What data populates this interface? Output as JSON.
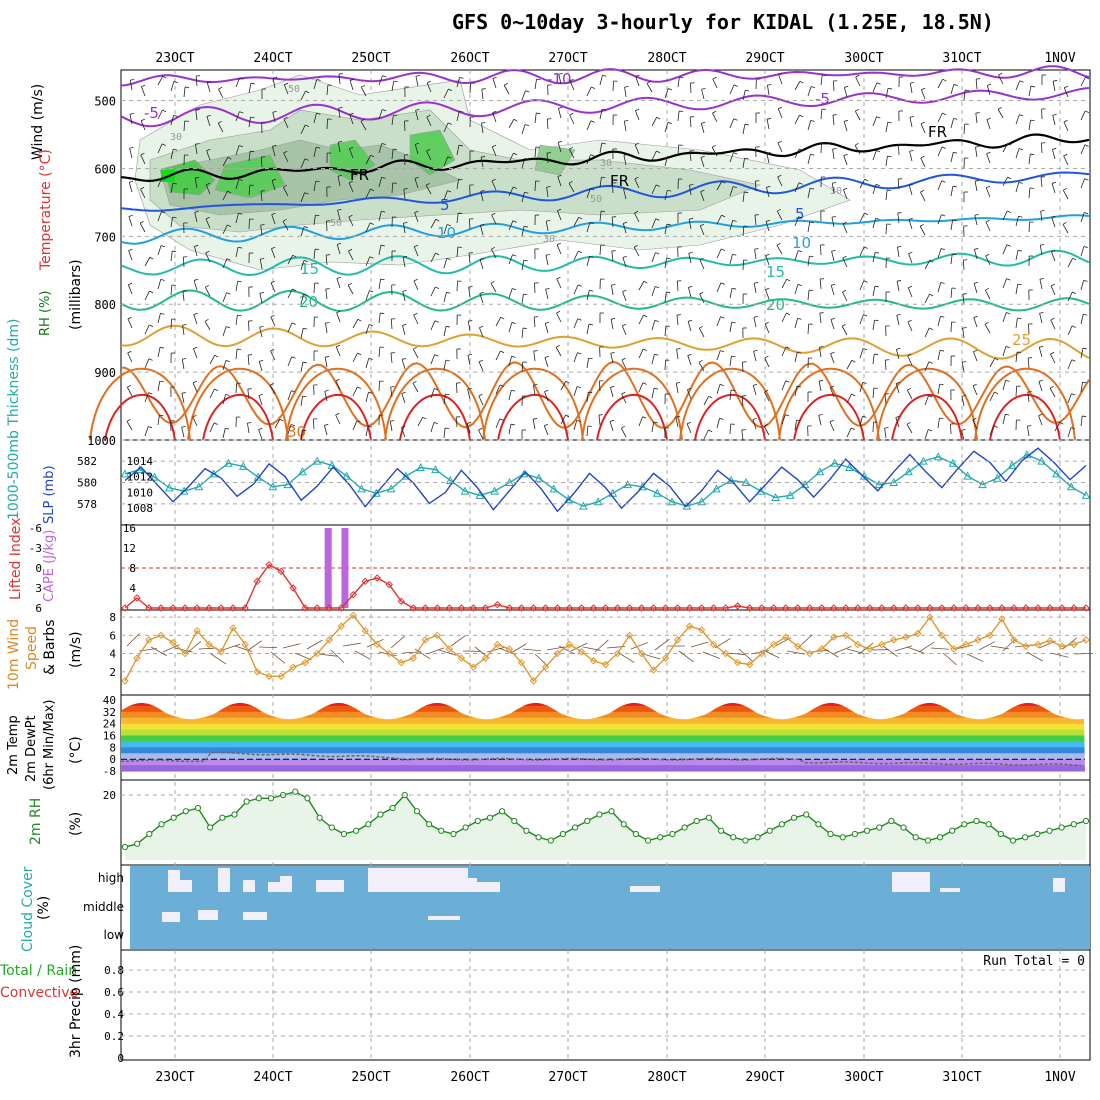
{
  "title": "GFS 0~10day 3-hourly for KIDAL (1.25E, 18.5N)",
  "colors": {
    "grid": "#aaaaaa",
    "wind_label": "#000000",
    "temp_label": "#dd3333",
    "rh_green": "#22aa22",
    "thickness": "#22aaaa",
    "slp": "#2244cc",
    "lifted": "#dd3333",
    "cape": "#bb66dd",
    "wind10": "#dd8822",
    "cloud": "#6baed6",
    "rh2m": "#228822"
  },
  "date_ticks": [
    "23OCT",
    "24OCT",
    "25OCT",
    "26OCT",
    "27OCT",
    "28OCT",
    "29OCT",
    "30OCT",
    "31OCT",
    "1NOV"
  ],
  "panel_labels": {
    "upper": {
      "wind": "Wind (m/s)",
      "temp": "Temperature (°C)",
      "rh": "RH (%)",
      "millibars": "(millibars)"
    },
    "thick": {
      "thickness": "1000-500mb Thickness (dm)",
      "slp": "SLP (mb)"
    },
    "cape": {
      "lifted": "Lifted Index",
      "cape": "CAPE (J/kg)"
    },
    "wind10": {
      "a": "10m Wind",
      "b": "Speed",
      "c": "& Barbs",
      "unit": "(m/s)"
    },
    "temp2m": {
      "a": "2m Temp",
      "b": "2m DewPt",
      "c": "(6hr Min/Max)",
      "unit": "(°C)"
    },
    "rh2m": {
      "a": "2m RH",
      "unit": "(%)"
    },
    "cloud": {
      "a": "Cloud Cover",
      "unit": "(%)",
      "high": "high",
      "middle": "middle",
      "low": "low"
    },
    "precip": {
      "a": "Total / Rain",
      "b": "Convective",
      "c": "3hr Precip (mm)",
      "run_total": "Run Total = 0"
    }
  },
  "chart_data": [
    {
      "type": "contour",
      "name": "upper-air",
      "ylabel": "millibars",
      "y_ticks": [
        500,
        600,
        700,
        800,
        900,
        1000
      ],
      "contour_labels_temp": [
        "-10",
        "-5",
        "FR",
        "5",
        "10",
        "15",
        "20",
        "25",
        "30"
      ],
      "rh_contour_labels": [
        "30",
        "50"
      ],
      "isotherms": [
        {
          "label": "-10",
          "color": "#9932cc"
        },
        {
          "label": "-5",
          "color": "#9932cc"
        },
        {
          "label": "FR",
          "color": "#000000"
        },
        {
          "label": "5",
          "color": "#2255dd"
        },
        {
          "label": "10",
          "color": "#22a0dd"
        },
        {
          "label": "15",
          "color": "#22bbaa"
        },
        {
          "label": "20",
          "color": "#22bb88"
        },
        {
          "label": "25",
          "color": "#e0a030"
        },
        {
          "label": "30",
          "color": "#e07020"
        }
      ]
    },
    {
      "type": "line",
      "name": "thickness-slp",
      "left_ticks": [
        "582",
        "580",
        "578"
      ],
      "right_ticks": [
        "1014",
        "1012",
        "1010",
        "1008"
      ],
      "thickness": [
        580.8,
        581.2,
        580.5,
        579.5,
        579.2,
        579.6,
        580.8,
        581.8,
        581.5,
        580.5,
        579.6,
        579.8,
        581.0,
        582.0,
        581.6,
        580.6,
        579.4,
        579.0,
        579.4,
        580.6,
        581.4,
        581.2,
        580.2,
        579.2,
        578.8,
        579.2,
        580.0,
        580.8,
        580.4,
        579.4,
        578.4,
        577.8,
        578.2,
        579.0,
        579.8,
        579.6,
        579.0,
        578.2,
        577.8,
        578.2,
        579.4,
        580.2,
        580.0,
        579.2,
        578.6,
        578.8,
        579.8,
        581.0,
        581.8,
        581.4,
        580.6,
        579.8,
        580.0,
        581.0,
        582.0,
        582.4,
        581.8,
        580.6,
        579.8,
        580.4,
        581.6,
        582.6,
        582.0,
        580.8,
        579.6,
        578.8
      ],
      "slp": [
        1011.5,
        1013.2,
        1011.0,
        1008.8,
        1010.8,
        1013.0,
        1011.8,
        1009.5,
        1011.0,
        1013.6,
        1012.0,
        1009.0,
        1010.8,
        1013.2,
        1011.0,
        1008.2,
        1010.6,
        1013.0,
        1011.2,
        1008.6,
        1010.0,
        1012.8,
        1010.6,
        1007.8,
        1010.2,
        1012.6,
        1010.4,
        1007.6,
        1009.8,
        1012.4,
        1010.6,
        1008.0,
        1010.0,
        1012.4,
        1010.8,
        1008.2,
        1010.2,
        1012.8,
        1011.2,
        1008.8,
        1011.0,
        1013.2,
        1011.6,
        1009.4,
        1011.6,
        1014.2,
        1012.2,
        1010.2,
        1012.6,
        1014.8,
        1012.6,
        1010.6,
        1013.0,
        1015.2,
        1013.8,
        1011.4,
        1014.0,
        1015.6,
        1013.8,
        1011.6,
        1013.4
      ]
    },
    {
      "type": "line+bar",
      "name": "lifted-cape",
      "left_ticks": [
        "-6",
        "-3",
        "0",
        "3",
        "6"
      ],
      "right_ticks": [
        "16",
        "12",
        "8",
        "4"
      ],
      "cape_bars": [
        {
          "day_offset": 1.55,
          "value": 16
        },
        {
          "day_offset": 1.72,
          "value": 16
        }
      ],
      "lifted_index": [
        6,
        4.5,
        6,
        6,
        6,
        6,
        6,
        6,
        6,
        6,
        6,
        2,
        -0.5,
        0.5,
        3,
        6,
        6,
        6,
        6,
        4,
        2,
        1.5,
        2.5,
        5,
        6,
        6,
        6,
        6,
        6,
        6,
        6,
        5.5,
        6,
        6,
        6,
        6,
        6,
        6,
        6,
        6,
        6,
        6,
        6,
        6,
        6,
        6,
        6,
        6,
        6,
        6,
        6,
        5.7,
        6,
        6,
        6,
        6,
        6,
        6,
        6,
        6,
        6,
        6,
        6,
        6,
        6,
        6,
        6,
        6,
        6,
        6,
        6,
        6,
        6,
        6,
        6,
        6,
        6,
        6,
        6,
        6,
        6
      ]
    },
    {
      "type": "line",
      "name": "10m-wind",
      "y_ticks": [
        2,
        4,
        6,
        8
      ],
      "speed": [
        1.0,
        3.5,
        5.5,
        6.0,
        5.2,
        4.0,
        6.5,
        5.0,
        4.2,
        6.8,
        5.0,
        2.0,
        1.5,
        1.5,
        2.5,
        3.0,
        4.0,
        5.5,
        7.0,
        8.2,
        6.5,
        5.0,
        4.0,
        3.0,
        3.5,
        5.5,
        6.0,
        4.5,
        3.5,
        2.5,
        3.5,
        5.0,
        4.5,
        3.0,
        1.0,
        2.5,
        4.0,
        5.0,
        4.2,
        3.2,
        2.8,
        4.0,
        6.0,
        4.0,
        2.2,
        3.5,
        5.5,
        7.0,
        6.6,
        5.0,
        4.0,
        3.0,
        2.8,
        4.0,
        5.0,
        5.8,
        4.8,
        4.0,
        4.5,
        5.8,
        6.0,
        5.0,
        4.5,
        5.0,
        5.5,
        5.8,
        6.2,
        8.0,
        6.0,
        4.5,
        5.0,
        5.5,
        6.0,
        7.8,
        5.5,
        4.8,
        5.0,
        5.4,
        4.8,
        5.0,
        5.5
      ]
    },
    {
      "type": "area",
      "name": "2m-temp",
      "y_ticks": [
        40,
        32,
        24,
        16,
        8,
        0,
        -8
      ],
      "daily_max": [
        38,
        39,
        38,
        38,
        39,
        38,
        38,
        38,
        38,
        37
      ],
      "daily_min": [
        25,
        25,
        25,
        25,
        25,
        25,
        25,
        24,
        24,
        24
      ],
      "dewpoint_note": "dashed line near 0 to 8"
    },
    {
      "type": "area",
      "name": "2m-rh",
      "y_ticks": [
        20
      ],
      "values": [
        4,
        5,
        8,
        11,
        13,
        15,
        16,
        10,
        13,
        14,
        18,
        19,
        19,
        20,
        21,
        19,
        13,
        10,
        8,
        9,
        11,
        14,
        16,
        20,
        15,
        11,
        9,
        8,
        10,
        12,
        13,
        15,
        12,
        9,
        7,
        6,
        8,
        10,
        12,
        14,
        15,
        11,
        8,
        6,
        7,
        8,
        10,
        12,
        13,
        9,
        7,
        6,
        7,
        9,
        11,
        13,
        14,
        11,
        8,
        7,
        8,
        9,
        10,
        12,
        10,
        7,
        6,
        7,
        9,
        11,
        12,
        11,
        8,
        6,
        7,
        8,
        9,
        10,
        11,
        12
      ]
    },
    {
      "type": "area",
      "name": "cloud-cover",
      "categories": [
        "high",
        "middle",
        "low"
      ]
    },
    {
      "type": "bar",
      "name": "3hr-precip",
      "y_ticks": [
        "0.8",
        "0.6",
        "0.4",
        "0.2",
        "0"
      ],
      "ylim": [
        0,
        1
      ],
      "values": []
    }
  ]
}
